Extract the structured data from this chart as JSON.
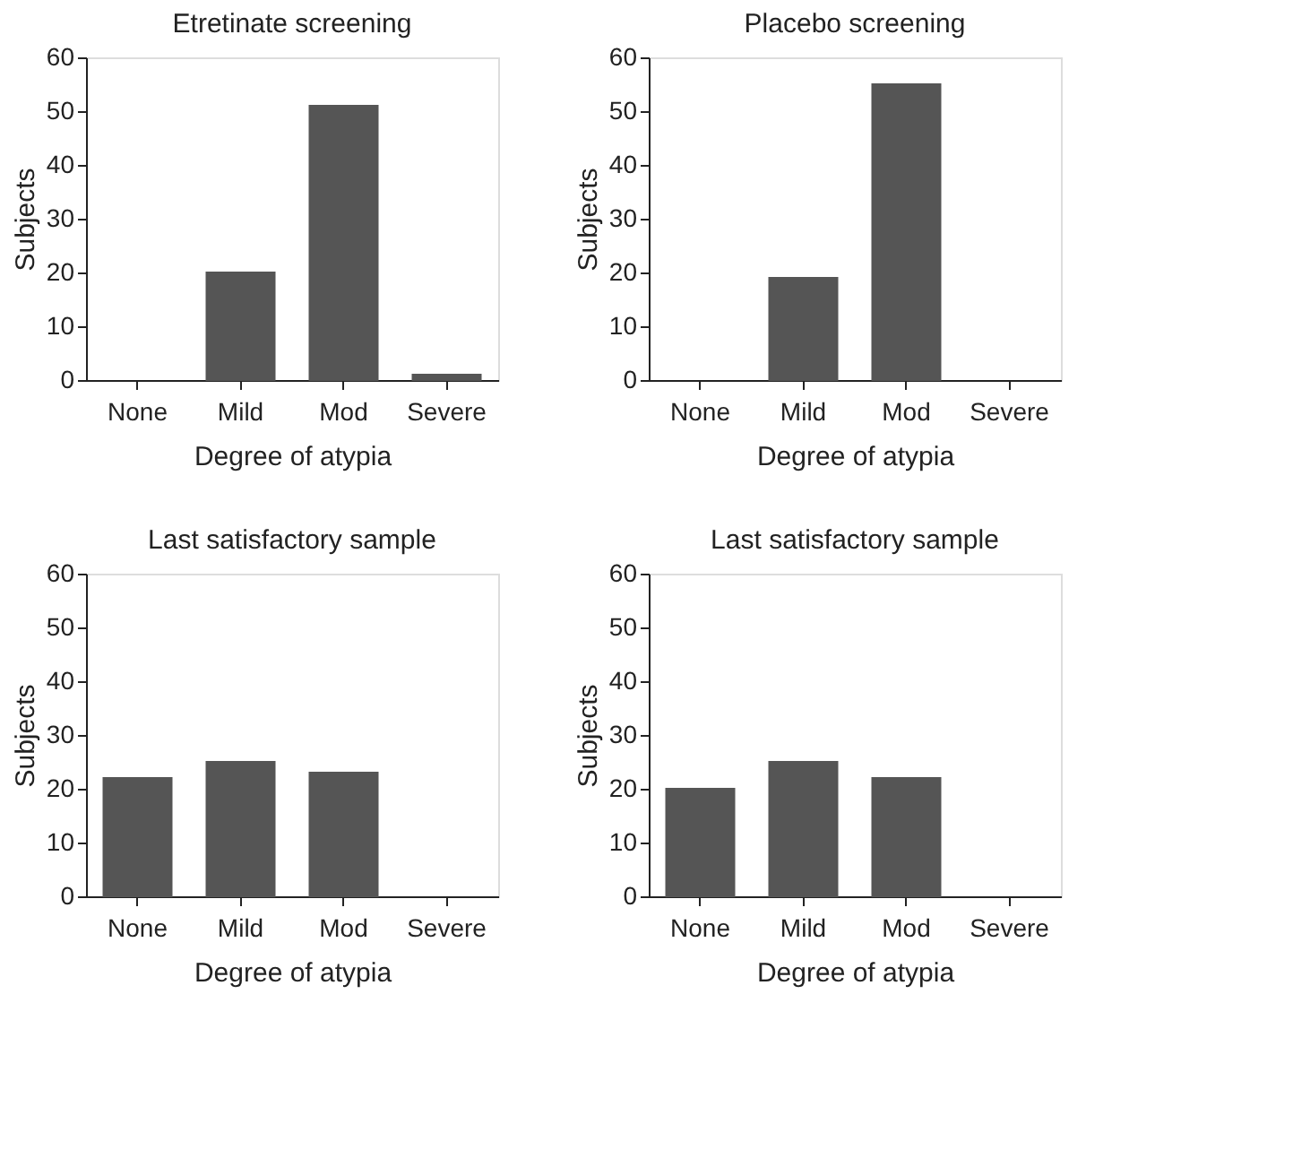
{
  "chart_data": [
    {
      "type": "bar",
      "title": "Etretinate screening",
      "categories": [
        "None",
        "Mild",
        "Mod",
        "Severe"
      ],
      "values": [
        null,
        20,
        51,
        1
      ],
      "color": "#555555",
      "xlabel": "Degree of atypia",
      "ylabel": "Subjects",
      "ylim": [
        0,
        60
      ],
      "yticks": [
        0,
        10,
        20,
        30,
        40,
        50,
        60
      ]
    },
    {
      "type": "bar",
      "title": "Placebo screening",
      "categories": [
        "None",
        "Mild",
        "Mod",
        "Severe"
      ],
      "values": [
        null,
        19,
        55,
        null
      ],
      "color": "#555555",
      "xlabel": "Degree of atypia",
      "ylabel": "Subjects",
      "ylim": [
        0,
        60
      ],
      "yticks": [
        0,
        10,
        20,
        30,
        40,
        50,
        60
      ]
    },
    {
      "type": "bar",
      "title": "Last satisfactory sample",
      "categories": [
        "None",
        "Mild",
        "Mod",
        "Severe"
      ],
      "values": [
        22,
        25,
        23,
        null
      ],
      "color": "#555555",
      "xlabel": "Degree of atypia",
      "ylabel": "Subjects",
      "ylim": [
        0,
        60
      ],
      "yticks": [
        0,
        10,
        20,
        30,
        40,
        50,
        60
      ]
    },
    {
      "type": "bar",
      "title": "Last satisfactory sample",
      "categories": [
        "None",
        "Mild",
        "Mod",
        "Severe"
      ],
      "values": [
        20,
        25,
        22,
        null
      ],
      "color": "#555555",
      "xlabel": "Degree of atypia",
      "ylabel": "Subjects",
      "ylim": [
        0,
        60
      ],
      "yticks": [
        0,
        10,
        20,
        30,
        40,
        50,
        60
      ]
    }
  ]
}
